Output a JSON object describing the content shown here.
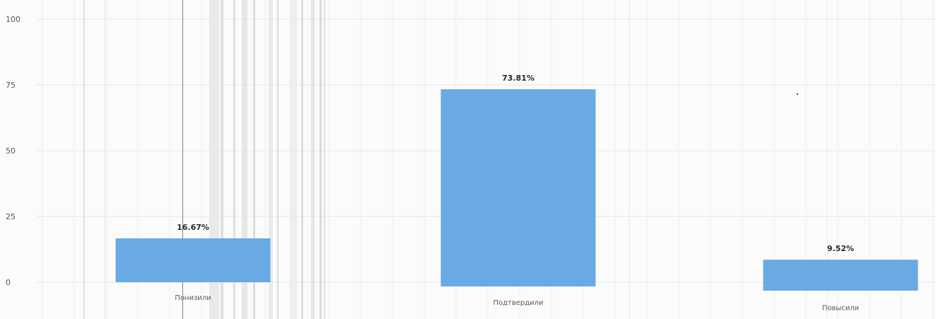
{
  "chart_data": {
    "type": "bar",
    "title": "",
    "xlabel": "",
    "ylabel": "",
    "categories": [
      "Понизили",
      "Подтвердили",
      "Повысили"
    ],
    "values": [
      16.67,
      73.81,
      9.52
    ],
    "data_labels": [
      "16.67%",
      "73.81%",
      "9.52%"
    ],
    "y_ticks": [
      0,
      25,
      50,
      75,
      100
    ],
    "y_tick_labels": [
      "0",
      "25",
      "50",
      "75",
      "100"
    ],
    "ylim": [
      0,
      100
    ],
    "grid": true,
    "legend": "none",
    "bar_color": "#6aaae4"
  }
}
